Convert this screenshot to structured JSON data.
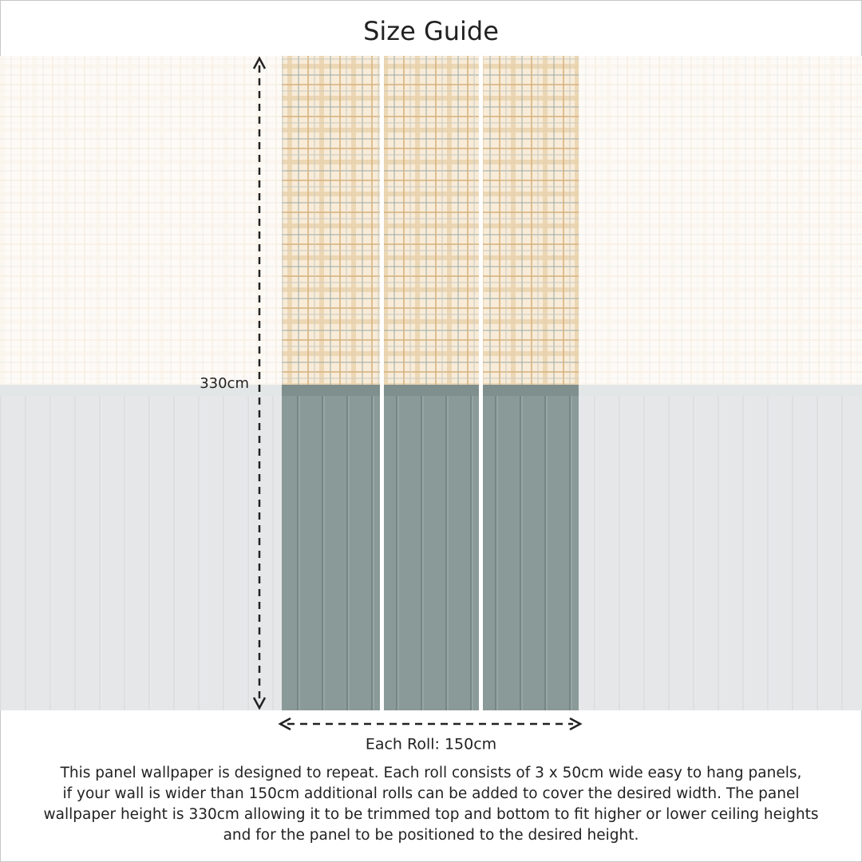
{
  "title": "Size Guide",
  "height_label": "330cm",
  "width_label": "Each Roll: 150cm",
  "description": [
    "This panel wallpaper is designed to repeat. Each roll consists of 3 x 50cm wide easy to hang panels,",
    "if your wall is wider than 150cm additional rolls can be added to cover the desired width. The panel",
    "wallpaper height is 330cm allowing it to be trimmed top and bottom to fit higher or lower ceiling heights",
    "and for the panel to be positioned to the desired height."
  ]
}
